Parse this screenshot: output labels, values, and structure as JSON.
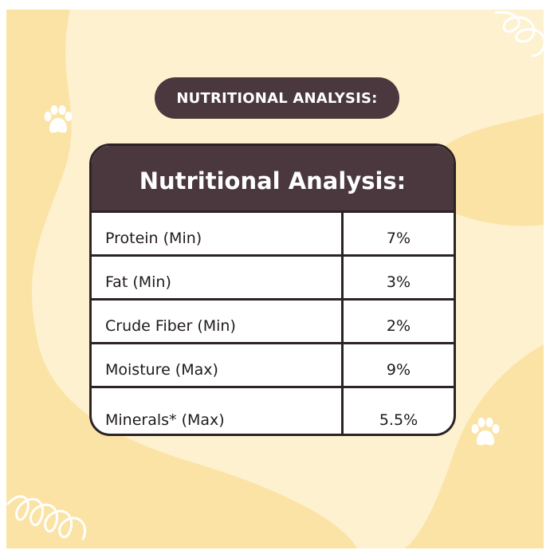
{
  "banner": {
    "title": "NUTRITIONAL ANALYSIS:"
  },
  "card": {
    "title": "Nutritional Analysis:"
  },
  "nutrients": [
    {
      "name": "Protein (Min)",
      "value": "7%"
    },
    {
      "name": "Fat (Min)",
      "value": "3%"
    },
    {
      "name": "Crude Fiber (Min)",
      "value": "2%"
    },
    {
      "name": "Moisture (Max)",
      "value": "9%"
    },
    {
      "name": "Minerals* (Max)",
      "value": "5.5%"
    }
  ],
  "colors": {
    "background": "#fdf1cf",
    "blob": "#fbe3a5",
    "header": "#4a383e",
    "border": "#2b2326"
  },
  "icons": [
    "paw-icon",
    "squiggle-decoration"
  ]
}
